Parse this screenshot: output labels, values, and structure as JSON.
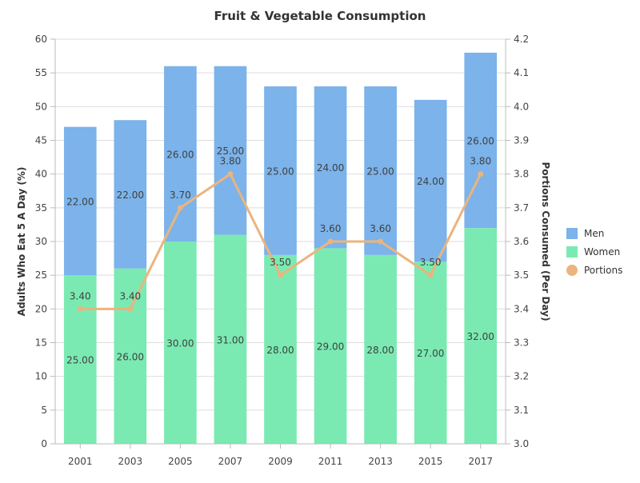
{
  "chart_data": {
    "type": "bar",
    "stacked": true,
    "title": "Fruit & Vegetable Consumption",
    "categories": [
      "2001",
      "2003",
      "2005",
      "2007",
      "2009",
      "2011",
      "2013",
      "2015",
      "2017"
    ],
    "series": [
      {
        "name": "Women",
        "type": "bar",
        "axis": "left",
        "color": "#7aeab2",
        "values": [
          25,
          26,
          30,
          31,
          28,
          29,
          28,
          27,
          32
        ]
      },
      {
        "name": "Men",
        "type": "bar",
        "axis": "left",
        "color": "#7bb3ea",
        "values": [
          22,
          22,
          26,
          25,
          25,
          24,
          25,
          24,
          26
        ]
      },
      {
        "name": "Portions",
        "type": "line",
        "axis": "right",
        "color": "#ebb47e",
        "values": [
          3.4,
          3.4,
          3.7,
          3.8,
          3.5,
          3.6,
          3.6,
          3.5,
          3.8
        ]
      }
    ],
    "y_left": {
      "label": "Adults Who Eat 5 A Day (%)",
      "range": [
        0,
        60
      ],
      "ticks": [
        "0",
        "5",
        "10",
        "15",
        "20",
        "25",
        "30",
        "35",
        "40",
        "45",
        "50",
        "55",
        "60"
      ]
    },
    "y_right": {
      "label": "Portions Consumed (Per Day)",
      "range": [
        3.0,
        4.2
      ],
      "ticks": [
        "3.0",
        "3.1",
        "3.2",
        "3.3",
        "3.4",
        "3.5",
        "3.6",
        "3.7",
        "3.8",
        "3.9",
        "4.0",
        "4.1",
        "4.2"
      ]
    },
    "grid": true,
    "legend": {
      "position": "right",
      "items": [
        {
          "name": "Men",
          "color": "#7bb3ea",
          "marker": "square"
        },
        {
          "name": "Women",
          "color": "#7aeab2",
          "marker": "square"
        },
        {
          "name": "Portions",
          "color": "#ebb47e",
          "marker": "circle"
        }
      ]
    }
  }
}
